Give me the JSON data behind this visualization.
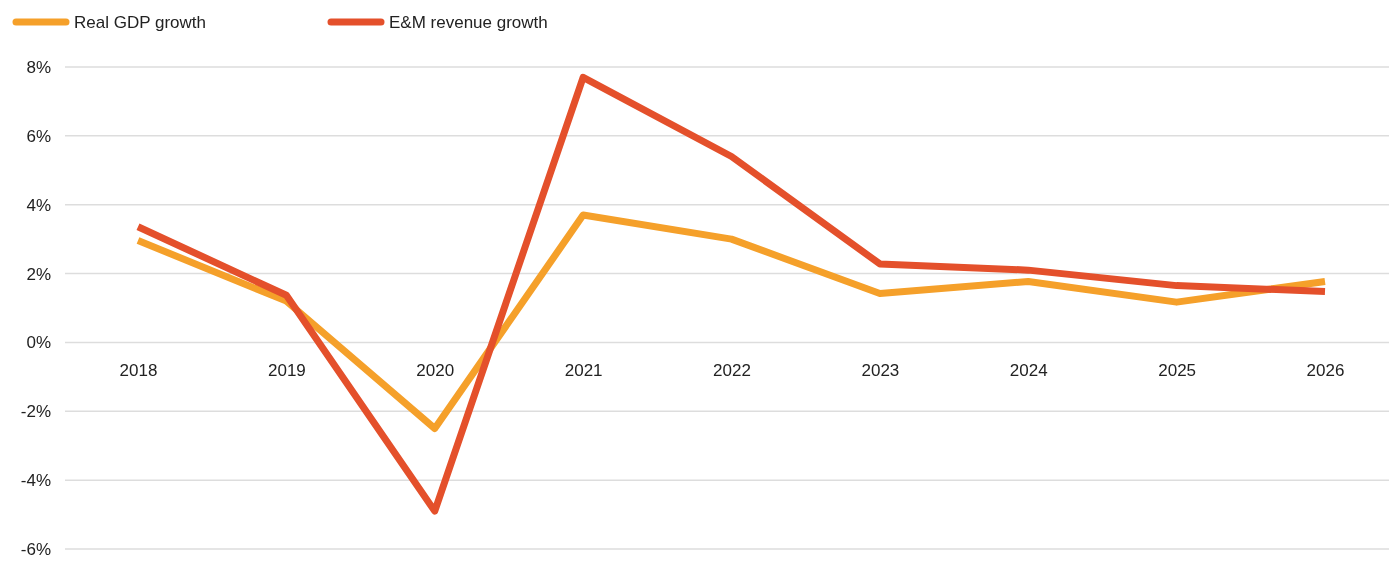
{
  "chart_data": {
    "type": "line",
    "categories": [
      "2018",
      "2019",
      "2020",
      "2021",
      "2022",
      "2023",
      "2024",
      "2025",
      "2026"
    ],
    "series": [
      {
        "name": "Real GDP growth",
        "color": "#f5a02a",
        "values": [
          2.96,
          1.2,
          -2.5,
          3.7,
          3.0,
          1.42,
          1.77,
          1.17,
          1.77
        ]
      },
      {
        "name": "E&M revenue growth",
        "color": "#e4502b",
        "values": [
          3.36,
          1.37,
          -4.9,
          7.7,
          5.4,
          2.28,
          2.1,
          1.65,
          1.48
        ]
      }
    ],
    "ylim": [
      -6,
      8
    ],
    "yticks": [
      {
        "value": -6,
        "label": "-6%"
      },
      {
        "value": -4,
        "label": "-4%"
      },
      {
        "value": -2,
        "label": "-2%"
      },
      {
        "value": 0,
        "label": "0%"
      },
      {
        "value": 2,
        "label": "2%"
      },
      {
        "value": 4,
        "label": "4%"
      },
      {
        "value": 6,
        "label": "6%"
      },
      {
        "value": 8,
        "label": "8%"
      }
    ],
    "grid": "y",
    "legend": "top left",
    "marker": "none",
    "line_style": "solid"
  }
}
